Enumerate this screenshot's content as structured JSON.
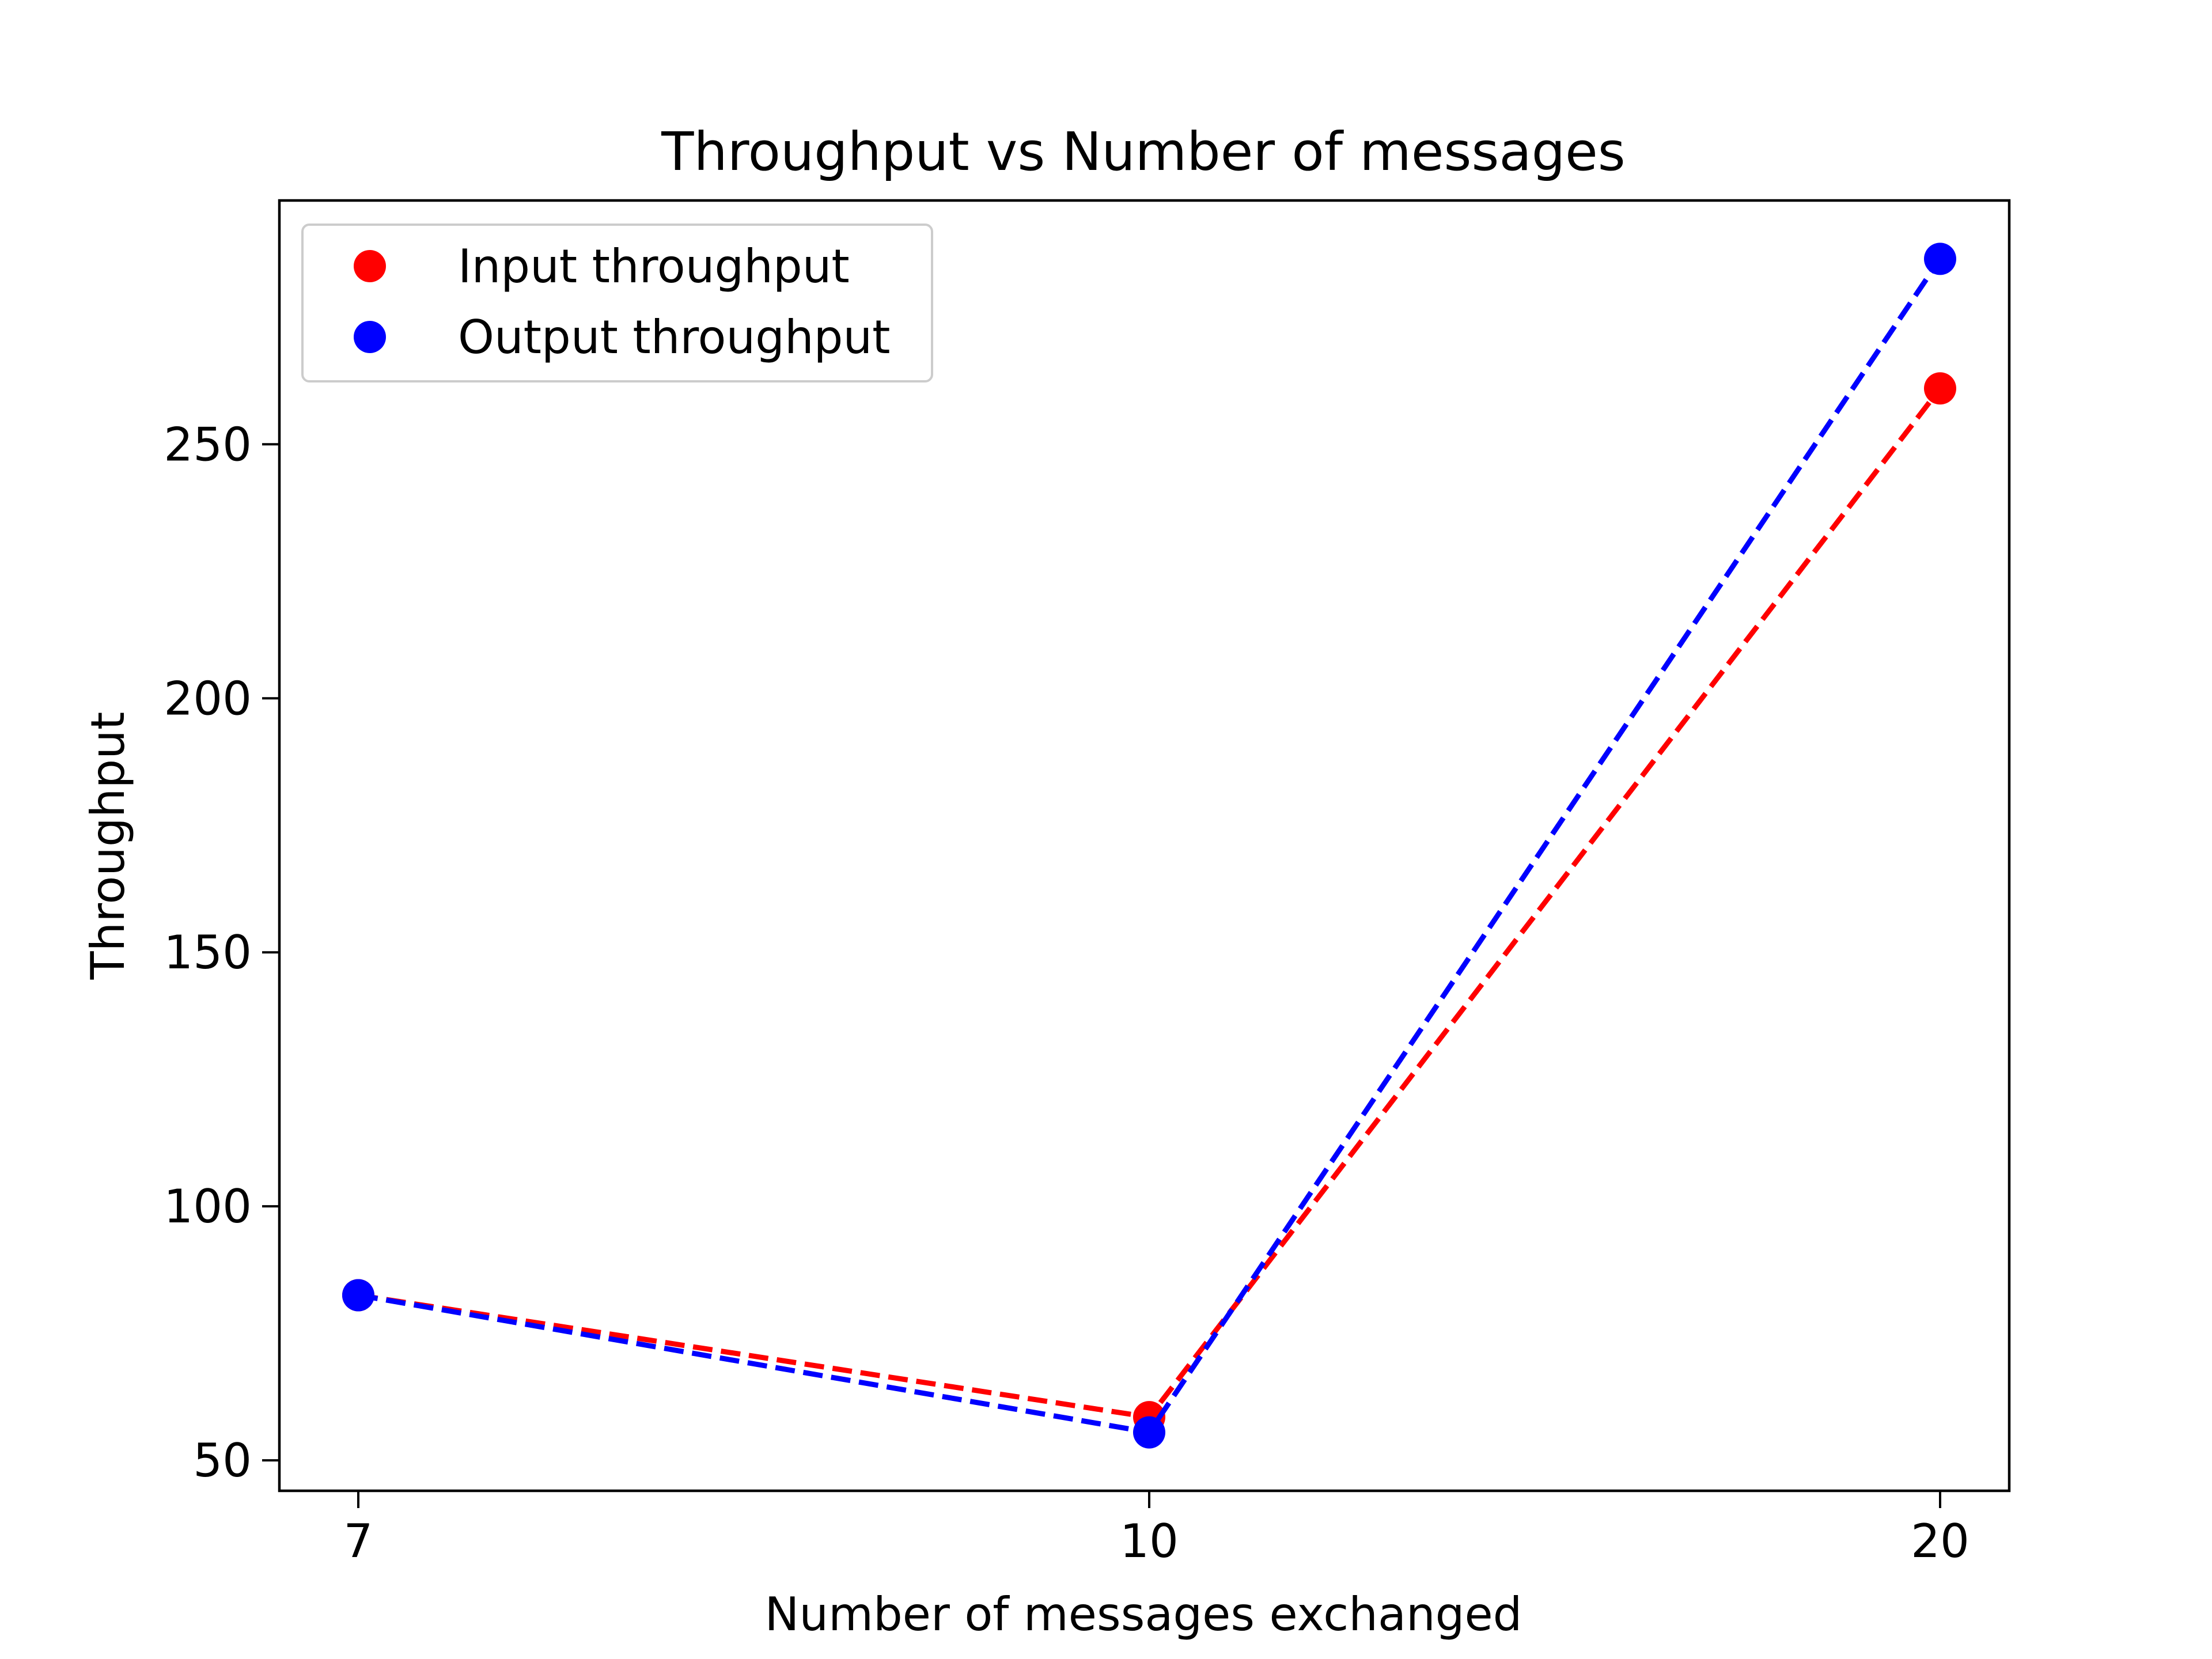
{
  "chart_data": {
    "type": "line",
    "title": "Throughput vs Number of messages",
    "xlabel": "Number of messages exchanged",
    "ylabel": "Throughput",
    "x_scale": "categorical",
    "categories": [
      "7",
      "10",
      "20"
    ],
    "ylim": [
      44,
      298
    ],
    "y_ticks": [
      50,
      100,
      150,
      200,
      250
    ],
    "grid": false,
    "legend_position": "upper left",
    "series": [
      {
        "name": "Input throughput",
        "color": "#ff0000",
        "line_style": "dashed",
        "marker": "circle",
        "values": [
          82.5,
          58.5,
          261
        ]
      },
      {
        "name": "Output throughput",
        "color": "#0000ff",
        "line_style": "dashed",
        "marker": "circle",
        "values": [
          82.5,
          55.5,
          286.5
        ]
      }
    ]
  }
}
